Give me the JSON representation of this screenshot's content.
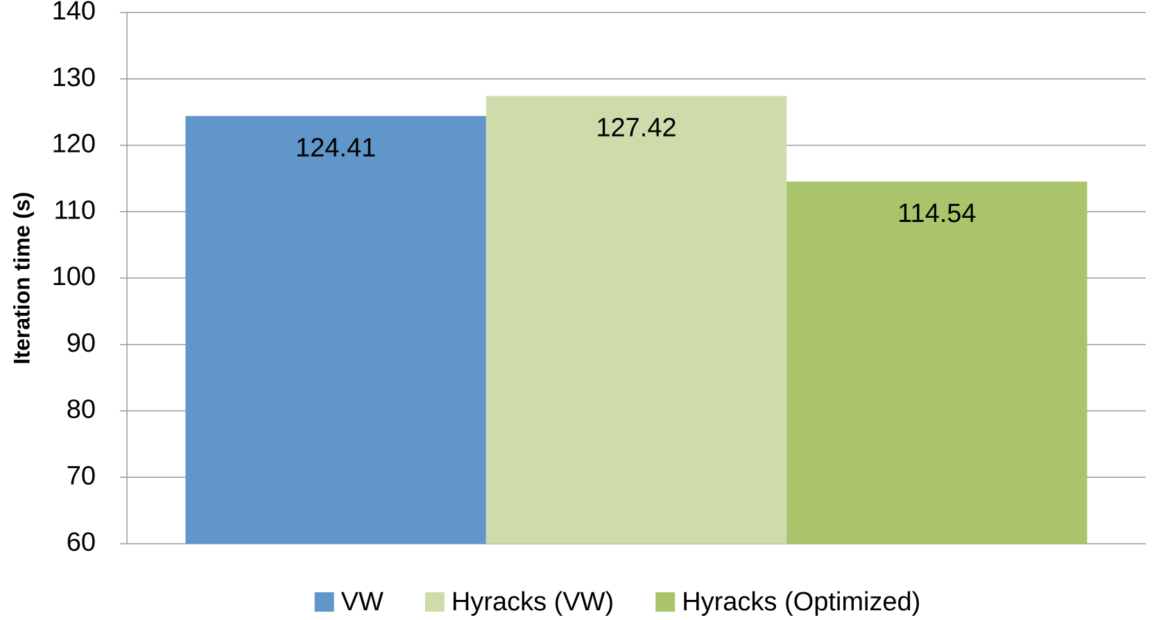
{
  "chart_data": {
    "type": "bar",
    "y_label": "Iteration time (s)",
    "categories": [
      null
    ],
    "series": [
      {
        "name": "VW",
        "color": "#6096c9",
        "values": [
          124.41
        ]
      },
      {
        "name": "Hyracks (VW)",
        "color": "#cddcaa",
        "values": [
          127.42
        ]
      },
      {
        "name": "Hyracks (Optimized)",
        "color": "#a9c46b",
        "values": [
          114.54
        ]
      }
    ],
    "ylim": [
      60,
      140
    ],
    "yticks": [
      60,
      70,
      80,
      90,
      100,
      110,
      120,
      130,
      140
    ],
    "grid": true,
    "legend": "bottom",
    "data_labels": true
  }
}
